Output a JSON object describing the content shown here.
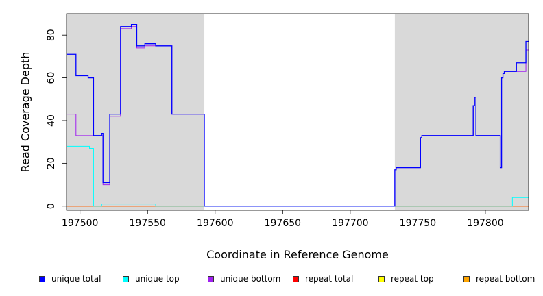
{
  "chart_data": {
    "type": "line",
    "title": "",
    "xlabel": "Coordinate in Reference Genome",
    "ylabel": "Read Coverage Depth",
    "xlim": [
      197490,
      197832
    ],
    "ylim": [
      -2,
      90
    ],
    "xticks": [
      197500,
      197550,
      197600,
      197650,
      197700,
      197750,
      197800
    ],
    "yticks": [
      0,
      20,
      40,
      60,
      80
    ],
    "xtick_labels": [
      "197500",
      "197550",
      "197600",
      "197650",
      "197700",
      "197750",
      "197800"
    ],
    "ytick_labels": [
      "0",
      "20",
      "40",
      "60",
      "80"
    ],
    "grid": false,
    "background": "#d9d9d9",
    "highlight_regions": [
      {
        "x0": 197592,
        "x1": 197733,
        "color": "#ffffff"
      }
    ],
    "legend_position": "bottom",
    "series": [
      {
        "name": "unique total",
        "color": "#0000ff",
        "step": true,
        "x": [
          197490,
          197497,
          197505,
          197506,
          197510,
          197516,
          197517,
          197522,
          197530,
          197538,
          197542,
          197548,
          197556,
          197568,
          197592,
          197733,
          197734,
          197752,
          197753,
          197791,
          197792,
          197793,
          197811,
          197812,
          197813,
          197814,
          197818,
          197823,
          197830,
          197832
        ],
        "y": [
          71,
          61,
          61,
          60,
          33,
          34,
          11,
          43,
          84,
          85,
          75,
          76,
          75,
          43,
          0,
          17,
          18,
          32,
          33,
          47,
          51,
          33,
          18,
          60,
          62,
          63,
          63,
          67,
          77,
          77
        ]
      },
      {
        "name": "unique top",
        "color": "#00ffff",
        "step": true,
        "x": [
          197490,
          197496,
          197503,
          197507,
          197508,
          197510,
          197516,
          197529,
          197556,
          197592,
          197733,
          197820,
          197832
        ],
        "y": [
          28,
          28,
          28,
          27,
          27,
          0,
          1,
          1,
          0,
          0,
          0,
          4,
          4
        ]
      },
      {
        "name": "unique bottom",
        "color": "#a020f0",
        "step": true,
        "x": [
          197490,
          197497,
          197510,
          197517,
          197522,
          197530,
          197538,
          197542,
          197548,
          197556,
          197568,
          197592,
          197733,
          197734,
          197752,
          197753,
          197791,
          197792,
          197793,
          197811,
          197812,
          197813,
          197814,
          197823,
          197830,
          197832
        ],
        "y": [
          43,
          33,
          33,
          10,
          42,
          83,
          84,
          74,
          75,
          75,
          43,
          0,
          17,
          18,
          32,
          33,
          47,
          51,
          33,
          18,
          60,
          62,
          63,
          63,
          73,
          73
        ]
      },
      {
        "name": "repeat total",
        "color": "#ff0000",
        "step": true,
        "x": [
          197490,
          197832
        ],
        "y": [
          0,
          0
        ]
      },
      {
        "name": "repeat top",
        "color": "#ffff00",
        "step": true,
        "x": [
          197490,
          197832
        ],
        "y": [
          0,
          0
        ]
      },
      {
        "name": "repeat bottom",
        "color": "#ffa500",
        "step": true,
        "x": [
          197490,
          197832
        ],
        "y": [
          0,
          0
        ]
      }
    ]
  }
}
